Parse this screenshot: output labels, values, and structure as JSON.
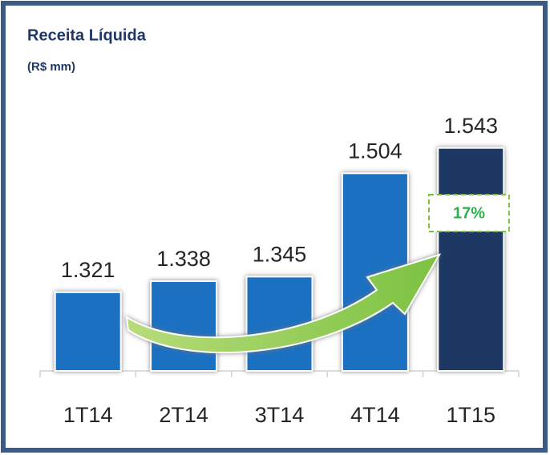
{
  "chart_data": {
    "type": "bar",
    "title": "Receita Líquida",
    "subtitle": "(R$ mm)",
    "categories": [
      "1T14",
      "2T14",
      "3T14",
      "4T14",
      "1T15"
    ],
    "values": [
      1321,
      1338,
      1345,
      1504,
      1543
    ],
    "value_labels": [
      "1.321",
      "1.338",
      "1.345",
      "1.504",
      "1.543"
    ],
    "colors": [
      "#1f70c1",
      "#1f70c1",
      "#1f70c1",
      "#1f70c1",
      "#1f3864"
    ],
    "ylim": [
      1200,
      1550
    ],
    "annotation": "17%"
  }
}
